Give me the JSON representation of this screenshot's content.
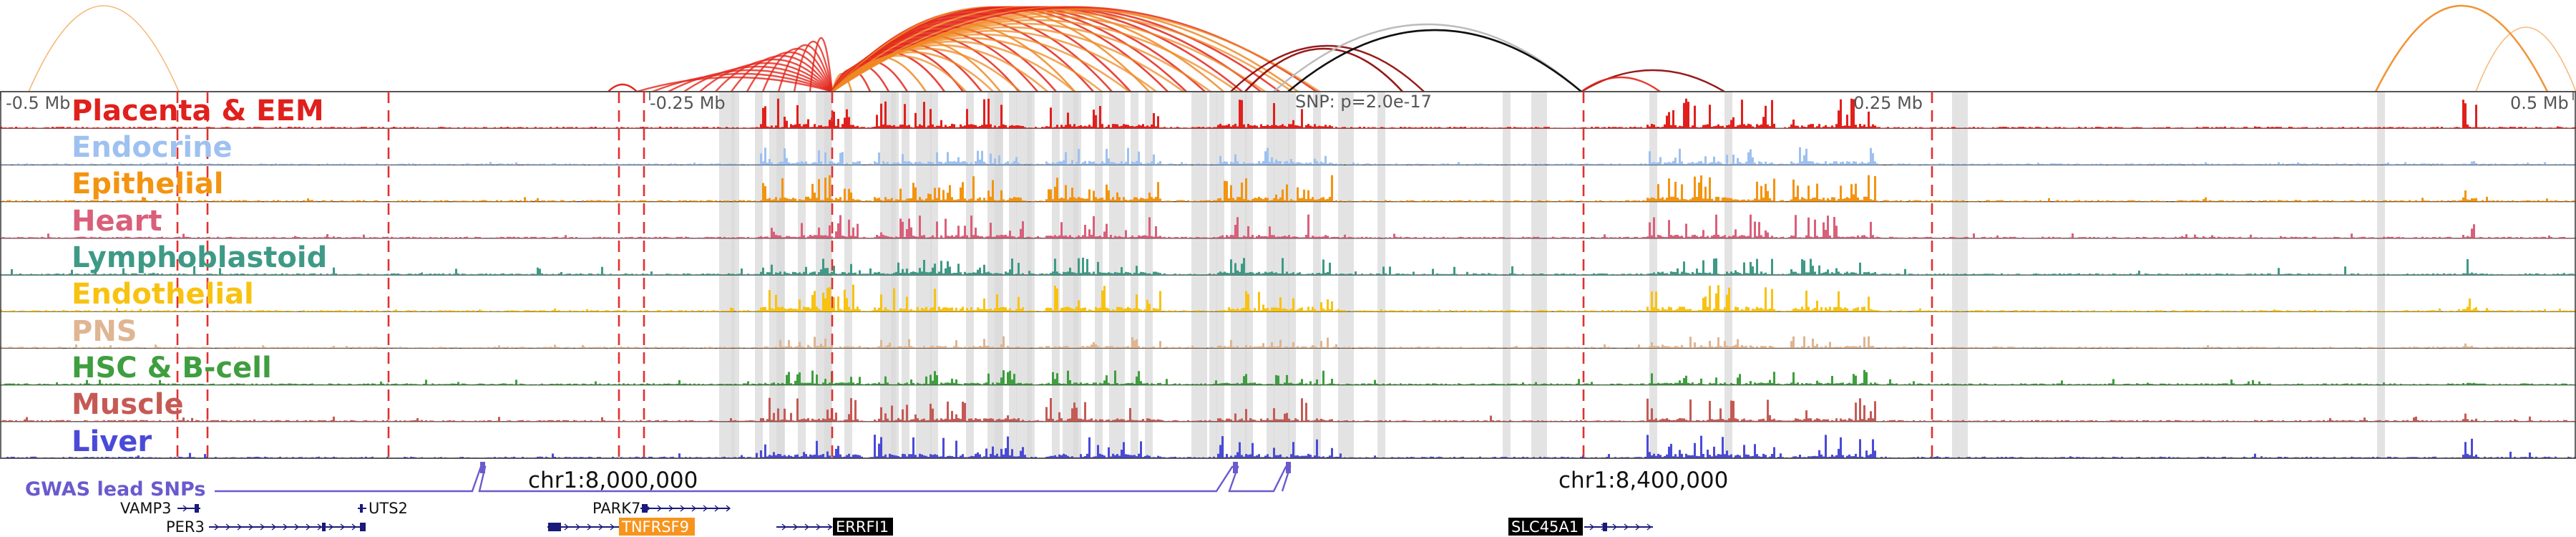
{
  "scale": {
    "labels": [
      "-0.5 Mb",
      "-0.25 Mb",
      "0.25 Mb",
      "0.5 Mb"
    ],
    "snp_label": "SNP: p=2.0e-17"
  },
  "tracks": [
    {
      "name": "Placenta & EEM",
      "color": "#e0201c"
    },
    {
      "name": "Endocrine",
      "color": "#9ec1f0"
    },
    {
      "name": "Epithelial",
      "color": "#f39410"
    },
    {
      "name": "Heart",
      "color": "#d9607a"
    },
    {
      "name": "Lymphoblastoid",
      "color": "#3e9a86"
    },
    {
      "name": "Endothelial",
      "color": "#f8c210"
    },
    {
      "name": "PNS",
      "color": "#dfb592"
    },
    {
      "name": "HSC & B-cell",
      "color": "#3f9e3f"
    },
    {
      "name": "Muscle",
      "color": "#c55a55"
    },
    {
      "name": "Liver",
      "color": "#4a4ad8"
    }
  ],
  "gwas": {
    "label": "GWAS lead SNPs",
    "color": "#6a5acd"
  },
  "coords": [
    "chr1:8,000,000",
    "chr1:8,400,000"
  ],
  "genes": [
    {
      "name": "VAMP3",
      "highlight": ""
    },
    {
      "name": "UTS2",
      "highlight": ""
    },
    {
      "name": "PER3",
      "highlight": ""
    },
    {
      "name": "PARK7",
      "highlight": ""
    },
    {
      "name": "TNFRSF9",
      "highlight": "#f7941d"
    },
    {
      "name": "ERRFI1",
      "highlight": "#000000"
    },
    {
      "name": "SLC45A1",
      "highlight": "#000000"
    }
  ],
  "colors": {
    "arc_strong": "#e3261c",
    "arc_orange": "#f08a24",
    "arc_dark": "#8b0000",
    "arc_black": "#111111",
    "arc_grey": "#bbbbbb",
    "highlight_band": "#d9d9d9",
    "dashed": "#e03030"
  }
}
